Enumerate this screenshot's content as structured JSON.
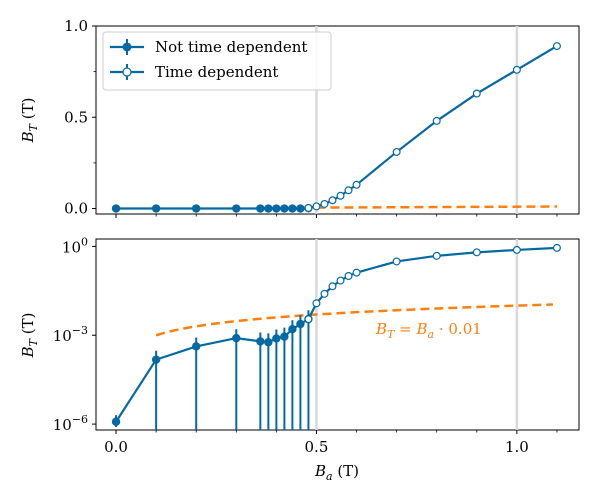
{
  "chart_data": [
    {
      "type": "line",
      "yscale": "linear",
      "xlim": [
        -0.05,
        1.155
      ],
      "ylim": [
        -0.03,
        1.0
      ],
      "xlabel": "",
      "ylabel_base": "B",
      "ylabel_sub": "T",
      "ylabel_unit": " (T)",
      "xticks": [
        0.0,
        0.5,
        1.0
      ],
      "xtick_labels": [
        "",
        "",
        ""
      ],
      "yticks": [
        0.0,
        0.5,
        1.0
      ],
      "ytick_labels": [
        "0.0",
        "0.5",
        "1.0"
      ],
      "vlines": [
        0.5,
        1.0
      ],
      "legend": {
        "position": "top-left",
        "entries": [
          {
            "label": "Not time dependent",
            "marker": "filled"
          },
          {
            "label": "Time dependent",
            "marker": "open"
          }
        ]
      },
      "colors": {
        "series": "#0569a3",
        "reference": "#ff7f0e",
        "vline": "#d9d9d9"
      },
      "series": [
        {
          "name": "Not time dependent",
          "marker": "filled",
          "x": [
            0.0,
            0.1,
            0.2,
            0.3,
            0.36,
            0.38,
            0.4,
            0.42,
            0.44,
            0.46,
            0.48
          ],
          "y": [
            0.0,
            0.0,
            0.0,
            0.0,
            0.0,
            0.0,
            0.0,
            0.0,
            0.0,
            0.0,
            0.002
          ]
        },
        {
          "name": "Time dependent",
          "marker": "open",
          "x": [
            0.48,
            0.5,
            0.52,
            0.54,
            0.56,
            0.58,
            0.6,
            0.7,
            0.8,
            0.9,
            1.0,
            1.1
          ],
          "y": [
            0.003,
            0.012,
            0.025,
            0.045,
            0.07,
            0.1,
            0.13,
            0.31,
            0.48,
            0.63,
            0.76,
            0.89
          ]
        }
      ],
      "reference": {
        "style": "dashed",
        "factor": 0.01,
        "x": [
          0.5,
          1.1
        ]
      }
    },
    {
      "type": "line",
      "yscale": "log",
      "xlim": [
        -0.05,
        1.155
      ],
      "ylim_exp": [
        -6.2,
        0.25
      ],
      "xlabel_base": "B",
      "xlabel_sub": "a",
      "xlabel_unit": " (T)",
      "ylabel_base": "B",
      "ylabel_sub": "T",
      "ylabel_unit": " (T)",
      "xticks": [
        0.0,
        0.5,
        1.0
      ],
      "xtick_labels": [
        "0.0",
        "0.5",
        "1.0"
      ],
      "yticks_exp": [
        0,
        -3,
        -6
      ],
      "ytick_labels": [
        {
          "base": "10",
          "exp": "0"
        },
        {
          "base": "10",
          "exp": "−3"
        },
        {
          "base": "10",
          "exp": "−6"
        }
      ],
      "vlines": [
        0.5,
        1.0
      ],
      "annotation": "B_T = B_a · 0.01",
      "annotation_parts": {
        "lhs_base": "B",
        "lhs_sub": "T",
        "eq": " = ",
        "rhs_base": "B",
        "rhs_sub": "a",
        "rhs_tail": " · 0.01"
      },
      "series": [
        {
          "name": "Not time dependent",
          "marker": "filled",
          "x": [
            0.0,
            0.1,
            0.2,
            0.3,
            0.36,
            0.38,
            0.4,
            0.42,
            0.44,
            0.46,
            0.48
          ],
          "y": [
            1.2e-06,
            0.00015,
            0.00042,
            0.0008,
            0.00062,
            0.00058,
            0.00078,
            0.0009,
            0.0016,
            0.0024,
            0.0035
          ],
          "yerr_lower": [
            4e-07,
            0.00015,
            0.00042,
            0.0008,
            0.00062,
            0.00058,
            0.00078,
            0.0009,
            0.0016,
            0.0024,
            0.0035
          ],
          "yerr_upper": [
            8e-07,
            0.00015,
            0.00042,
            0.0008,
            0.00062,
            0.00058,
            0.00078,
            0.0009,
            0.0016,
            0.0024,
            0.0035
          ]
        },
        {
          "name": "Time dependent",
          "marker": "open",
          "x": [
            0.48,
            0.5,
            0.52,
            0.54,
            0.56,
            0.58,
            0.6,
            0.7,
            0.8,
            0.9,
            1.0,
            1.1
          ],
          "y": [
            0.0035,
            0.012,
            0.025,
            0.045,
            0.07,
            0.1,
            0.13,
            0.31,
            0.48,
            0.63,
            0.76,
            0.89
          ]
        }
      ],
      "reference": {
        "style": "dashed",
        "factor": 0.01,
        "x": [
          0.1,
          1.09
        ]
      }
    }
  ]
}
